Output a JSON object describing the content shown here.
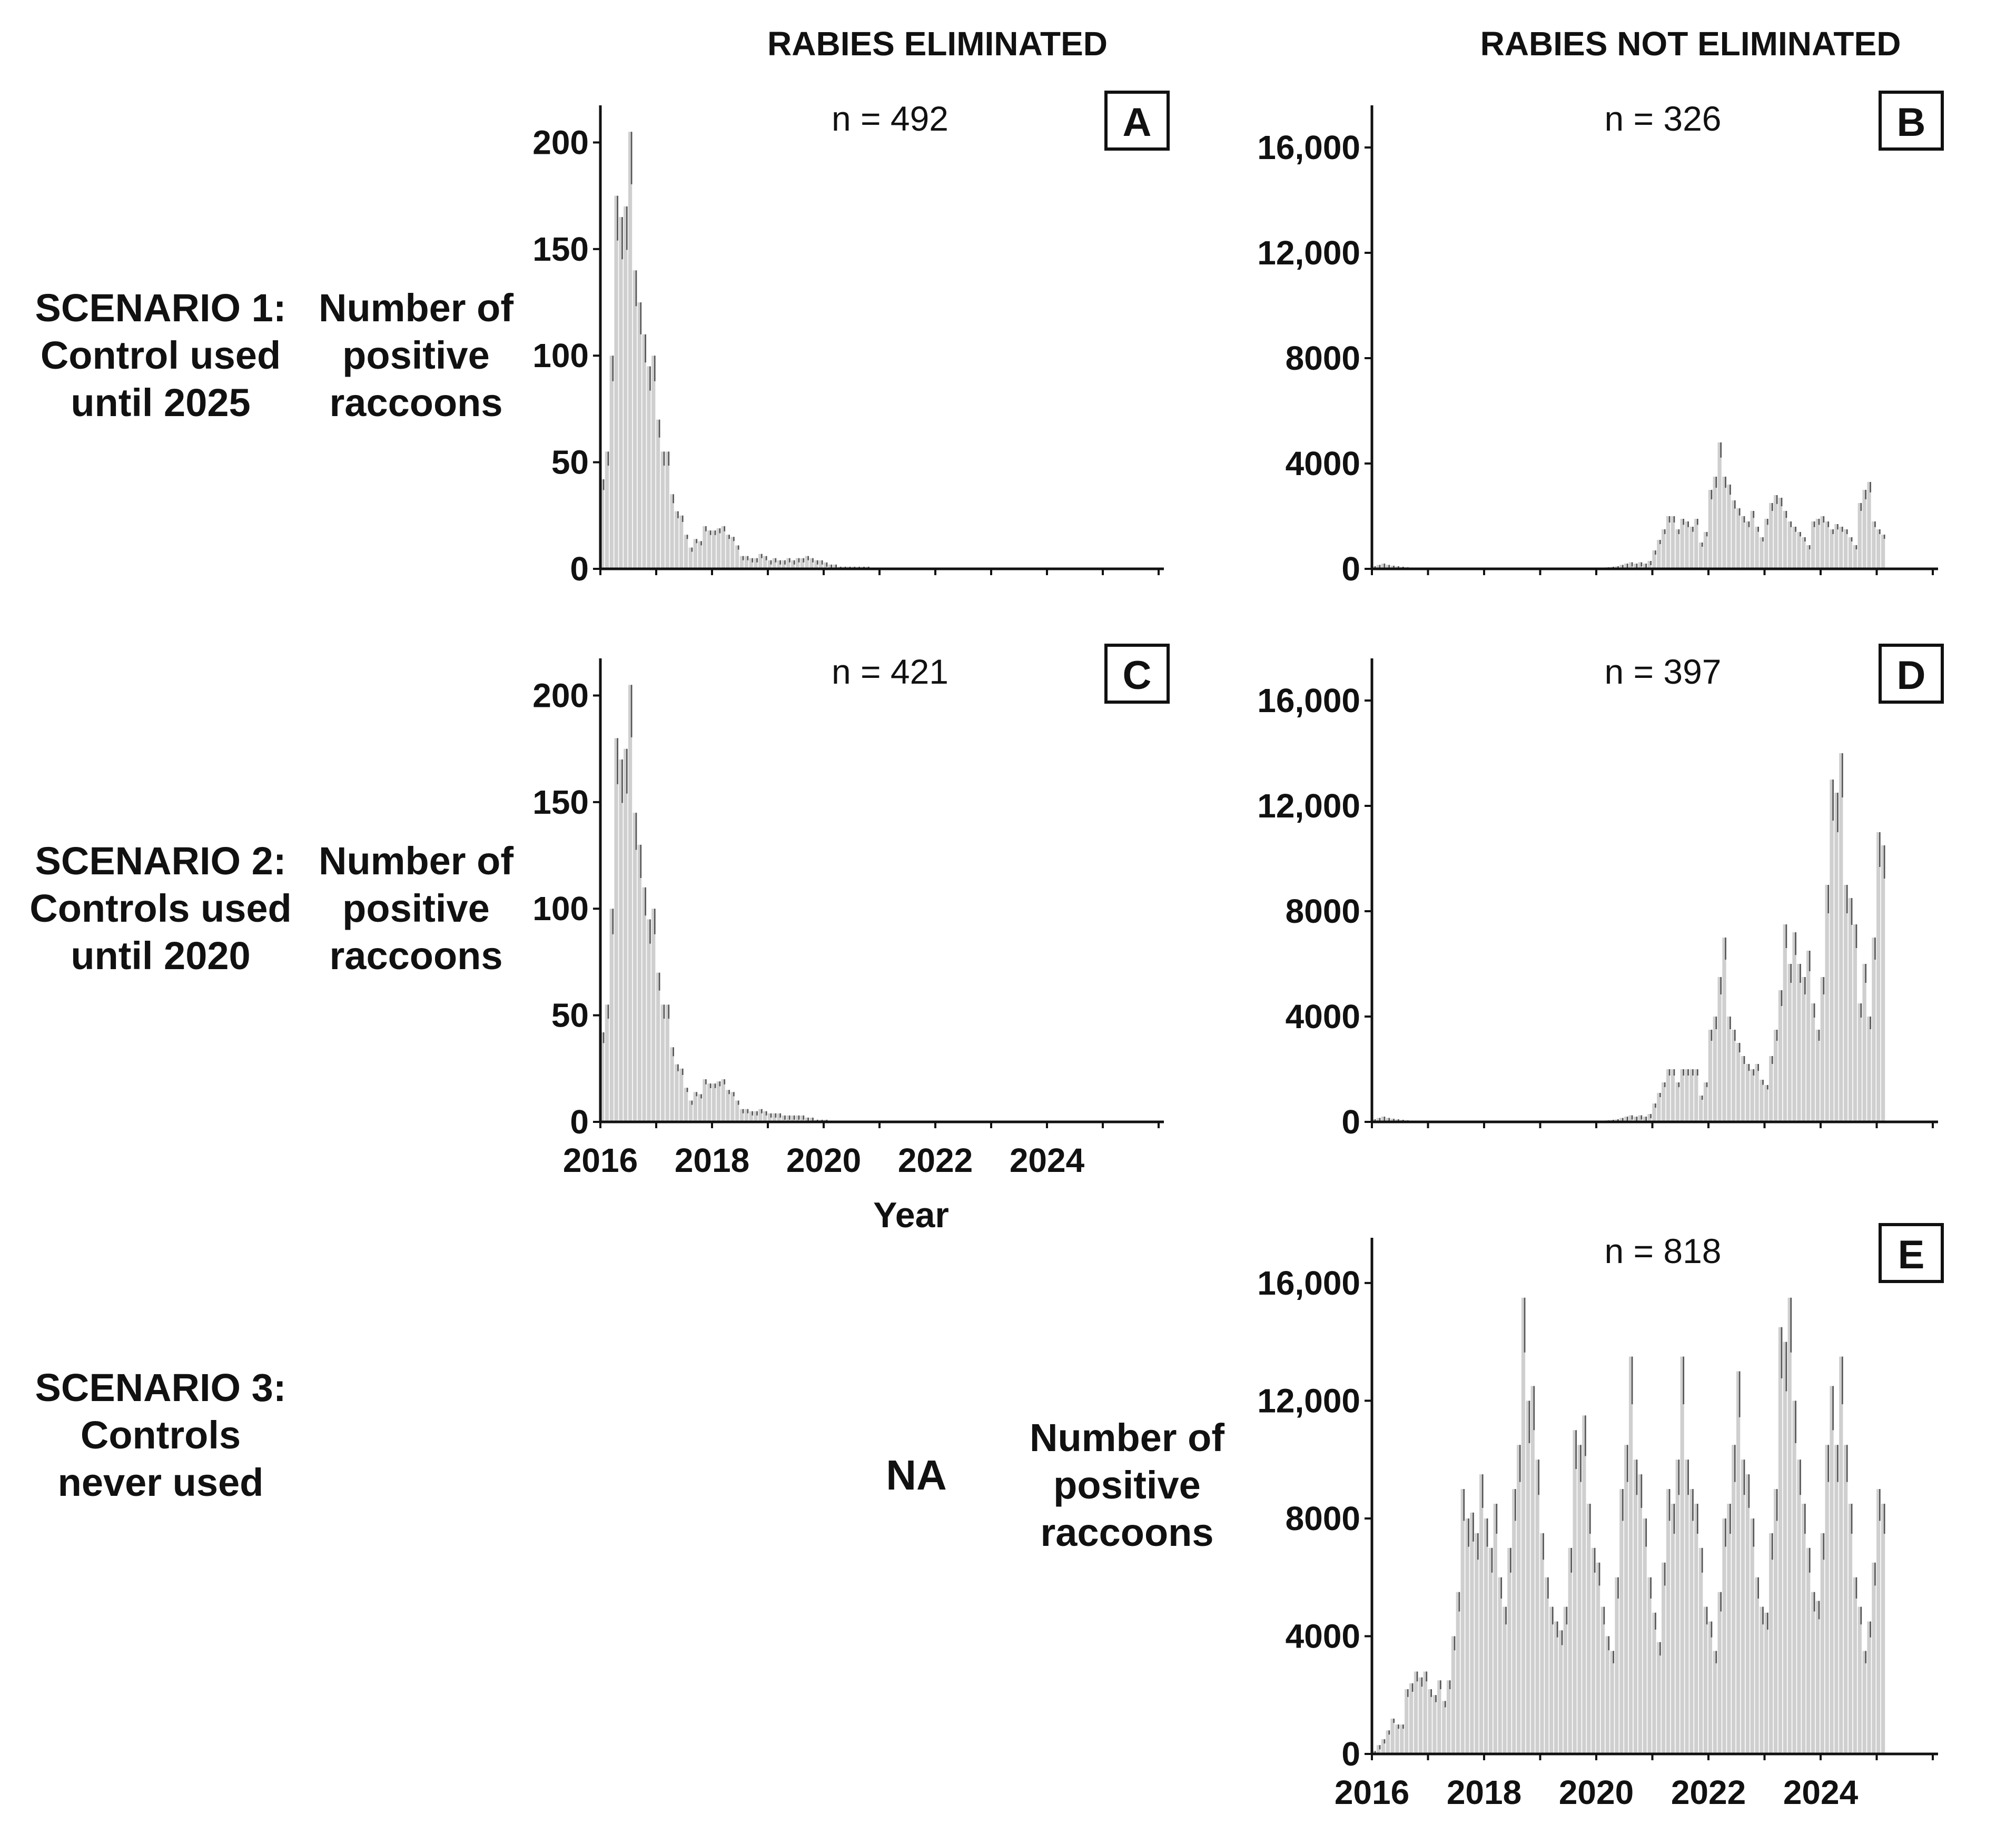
{
  "column_headers": {
    "eliminated": "RABIES ELIMINATED",
    "not_eliminated": "RABIES NOT ELIMINATED"
  },
  "scenarios": [
    {
      "id": "s1",
      "lines": [
        "SCENARIO 1:",
        "Control used",
        "until 2025"
      ]
    },
    {
      "id": "s2",
      "lines": [
        "SCENARIO 2:",
        "Controls used",
        "until 2020"
      ]
    },
    {
      "id": "s3",
      "lines": [
        "SCENARIO 3:",
        "Controls",
        "never used"
      ]
    }
  ],
  "y_axis_label_lines": [
    "Number of",
    "positive",
    "raccoons"
  ],
  "x_axis_label": "Year",
  "na_label": "NA",
  "chart_data": [
    {
      "panel": "A",
      "type": "bar",
      "n_label": "n = 492",
      "ylim": [
        0,
        210
      ],
      "yticks": [
        0,
        50,
        100,
        150,
        200
      ],
      "ytick_labels": [
        "0",
        "50",
        "100",
        "150",
        "200"
      ],
      "xlim": [
        2016.0,
        2026.0
      ],
      "xticks": [
        2016,
        2018,
        2020,
        2022,
        2024
      ],
      "xtick_labels": [],
      "xlabel": "",
      "series": [
        {
          "name": "months",
          "profile": "elim",
          "start": 2016.0,
          "step": 0.0833,
          "values": [
            42,
            55,
            100,
            175,
            165,
            170,
            205,
            140,
            125,
            110,
            95,
            100,
            70,
            55,
            55,
            35,
            27,
            25,
            16,
            10,
            14,
            13,
            20,
            18,
            18,
            19,
            20,
            16,
            15,
            11,
            6,
            6,
            5,
            5,
            7,
            6,
            4,
            5,
            4,
            4,
            5,
            4,
            5,
            5,
            6,
            5,
            4,
            4,
            3,
            2,
            2,
            1,
            1,
            1,
            1,
            1,
            1,
            1,
            0,
            0,
            0,
            0,
            0,
            0,
            0,
            0,
            0,
            0,
            0,
            0,
            0,
            0,
            0,
            0,
            0,
            0,
            0,
            0,
            0,
            0,
            0,
            0,
            0,
            0,
            0,
            0,
            0,
            0,
            0,
            0,
            0,
            0,
            0,
            0,
            0,
            0,
            0,
            0,
            0,
            0,
            0,
            0,
            0,
            0,
            0,
            0,
            0,
            0,
            0,
            0,
            0,
            0,
            0,
            0,
            0,
            0,
            0,
            0,
            0,
            0
          ]
        }
      ]
    },
    {
      "panel": "B",
      "type": "bar",
      "n_label": "n = 326",
      "ylim": [
        0,
        17000
      ],
      "yticks": [
        0,
        4000,
        8000,
        12000,
        16000
      ],
      "ytick_labels": [
        "0",
        "4000",
        "8000",
        "12,000",
        "16,000"
      ],
      "xlim": [
        2016.0,
        2026.0
      ],
      "xticks": [
        2016,
        2018,
        2020,
        2022,
        2024
      ],
      "xtick_labels": [],
      "xlabel": "",
      "series": [
        {
          "name": "months",
          "profile": "ne",
          "start": 2016.0,
          "step": 0.0833,
          "values": [
            100,
            150,
            200,
            150,
            120,
            100,
            80,
            60,
            50,
            40,
            30,
            20,
            20,
            20,
            20,
            20,
            20,
            20,
            20,
            20,
            20,
            20,
            20,
            20,
            20,
            20,
            20,
            20,
            20,
            20,
            20,
            20,
            20,
            20,
            20,
            20,
            20,
            20,
            20,
            20,
            20,
            20,
            20,
            20,
            20,
            20,
            20,
            20,
            30,
            40,
            60,
            80,
            100,
            150,
            200,
            250,
            200,
            250,
            200,
            300,
            700,
            1100,
            1500,
            2000,
            2000,
            1500,
            1900,
            1800,
            1600,
            1900,
            1000,
            1400,
            3000,
            3500,
            4800,
            3500,
            3200,
            2600,
            2300,
            2000,
            1800,
            2200,
            1600,
            1200,
            1900,
            2500,
            2800,
            2700,
            2200,
            1800,
            1600,
            1400,
            1200,
            900,
            1800,
            1900,
            2000,
            1800,
            1500,
            1700,
            1600,
            1500,
            1200,
            900,
            2500,
            3000,
            3300,
            1800,
            1500,
            1300
          ]
        }
      ]
    },
    {
      "panel": "C",
      "type": "bar",
      "n_label": "n = 421",
      "ylim": [
        0,
        210
      ],
      "yticks": [
        0,
        50,
        100,
        150,
        200
      ],
      "ytick_labels": [
        "0",
        "50",
        "100",
        "150",
        "200"
      ],
      "xlim": [
        2016.0,
        2026.0
      ],
      "xticks": [
        2016,
        2018,
        2020,
        2022,
        2024
      ],
      "xtick_labels": [
        "2016",
        "2018",
        "2020",
        "2022",
        "2024"
      ],
      "xlabel": "Year",
      "series": [
        {
          "name": "months",
          "profile": "elim",
          "start": 2016.0,
          "step": 0.0833,
          "values": [
            42,
            55,
            100,
            180,
            170,
            175,
            205,
            145,
            130,
            110,
            95,
            100,
            70,
            55,
            55,
            35,
            27,
            25,
            16,
            10,
            14,
            13,
            20,
            18,
            18,
            19,
            20,
            15,
            14,
            10,
            6,
            6,
            5,
            5,
            6,
            5,
            4,
            4,
            4,
            3,
            3,
            3,
            3,
            3,
            2,
            2,
            1,
            1,
            1,
            0,
            0,
            0,
            0,
            0,
            0,
            0,
            0,
            0,
            0,
            0,
            0,
            0,
            0,
            0,
            0,
            0,
            0,
            0,
            0,
            0,
            0,
            0,
            0,
            0,
            0,
            0,
            0,
            0,
            0,
            0,
            0,
            0,
            0,
            0,
            0,
            0,
            0,
            0,
            0,
            0,
            0,
            0,
            0,
            0,
            0,
            0,
            0,
            0,
            0,
            0,
            0,
            0,
            0,
            0,
            0,
            0,
            0,
            0,
            0,
            0,
            0,
            0,
            0,
            0,
            0,
            0,
            0,
            0,
            0,
            0
          ]
        }
      ]
    },
    {
      "panel": "D",
      "type": "bar",
      "n_label": "n = 397",
      "ylim": [
        0,
        17000
      ],
      "yticks": [
        0,
        4000,
        8000,
        12000,
        16000
      ],
      "ytick_labels": [
        "0",
        "4000",
        "8000",
        "12,000",
        "16,000"
      ],
      "xlim": [
        2016.0,
        2026.0
      ],
      "xticks": [
        2016,
        2018,
        2020,
        2022,
        2024
      ],
      "xtick_labels": [],
      "xlabel": "",
      "series": [
        {
          "name": "months",
          "profile": "ne",
          "start": 2016.0,
          "step": 0.0833,
          "values": [
            100,
            150,
            200,
            150,
            120,
            100,
            80,
            60,
            50,
            40,
            30,
            20,
            20,
            20,
            20,
            20,
            20,
            20,
            20,
            20,
            20,
            20,
            20,
            20,
            20,
            20,
            20,
            20,
            20,
            20,
            20,
            20,
            20,
            20,
            20,
            20,
            20,
            20,
            20,
            20,
            20,
            20,
            20,
            20,
            20,
            20,
            20,
            20,
            30,
            40,
            60,
            80,
            100,
            150,
            200,
            250,
            200,
            250,
            200,
            300,
            700,
            1100,
            1500,
            2000,
            2000,
            1500,
            2000,
            2000,
            2000,
            2000,
            1000,
            1500,
            3500,
            4000,
            5500,
            7000,
            4000,
            3500,
            3000,
            2500,
            2200,
            2000,
            2200,
            1600,
            1400,
            2500,
            3500,
            5000,
            7500,
            6000,
            7200,
            6000,
            5500,
            6500,
            4500,
            3500,
            5500,
            9000,
            13000,
            12500,
            14000,
            9000,
            8500,
            7500,
            4500,
            6000,
            4000,
            7000,
            11000,
            10500
          ]
        }
      ]
    },
    {
      "panel": "E",
      "type": "bar",
      "n_label": "n = 818",
      "ylim": [
        0,
        17000
      ],
      "yticks": [
        0,
        4000,
        8000,
        12000,
        16000
      ],
      "ytick_labels": [
        "0",
        "4000",
        "8000",
        "12,000",
        "16,000"
      ],
      "xlim": [
        2016.0,
        2026.0
      ],
      "xticks": [
        2016,
        2018,
        2020,
        2022,
        2024
      ],
      "xtick_labels": [
        "2016",
        "2018",
        "2020",
        "2022",
        "2024"
      ],
      "xlabel": "Year",
      "series": [
        {
          "name": "months",
          "profile": "ne",
          "start": 2016.0,
          "step": 0.0833,
          "values": [
            100,
            300,
            500,
            800,
            1200,
            1000,
            1000,
            2200,
            2400,
            2800,
            2600,
            2800,
            2200,
            2000,
            2500,
            1800,
            2500,
            4000,
            5500,
            9000,
            8000,
            8200,
            7500,
            9500,
            8000,
            7000,
            8500,
            6000,
            5000,
            7000,
            9000,
            10500,
            15500,
            12000,
            12500,
            10000,
            7500,
            6000,
            5000,
            4500,
            4200,
            5000,
            7000,
            11000,
            10500,
            11500,
            8500,
            7000,
            6500,
            5000,
            4000,
            3500,
            6000,
            9000,
            10500,
            13500,
            10000,
            9500,
            8000,
            6000,
            4800,
            3800,
            6500,
            9000,
            8500,
            10000,
            13500,
            10000,
            9000,
            8500,
            7000,
            5000,
            4500,
            3500,
            5500,
            8000,
            8500,
            10500,
            13000,
            10000,
            9500,
            8000,
            6000,
            5000,
            4800,
            7500,
            9000,
            14500,
            14000,
            15500,
            12000,
            10000,
            8500,
            7000,
            5500,
            5200,
            7500,
            10500,
            12500,
            10500,
            13500,
            10500,
            8500,
            6000,
            5000,
            3500,
            4500,
            6500,
            9000,
            8500
          ]
        }
      ]
    }
  ]
}
